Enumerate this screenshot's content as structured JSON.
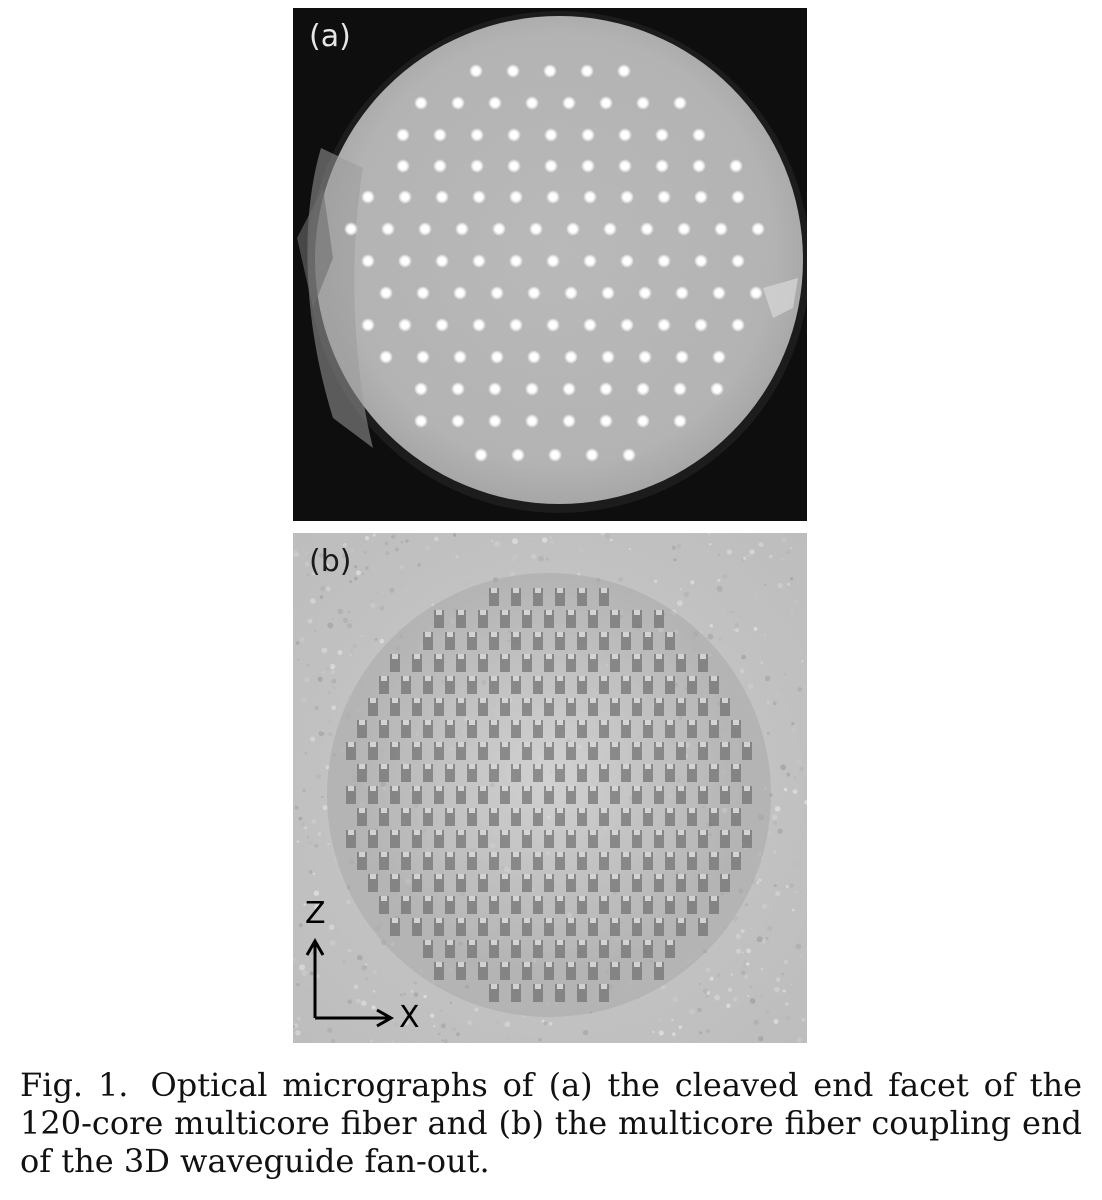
{
  "figure": {
    "panel_a": {
      "label": "(a)"
    },
    "panel_b": {
      "label": "(b)",
      "axis_z": "Z",
      "axis_x": "X"
    },
    "caption": {
      "number": "Fig. 1.",
      "text": "Optical micrographs of (a) the cleaved end facet of the 120-core multicore fiber and (b) the multicore fiber coupling end of the 3D waveguide fan-out."
    }
  }
}
